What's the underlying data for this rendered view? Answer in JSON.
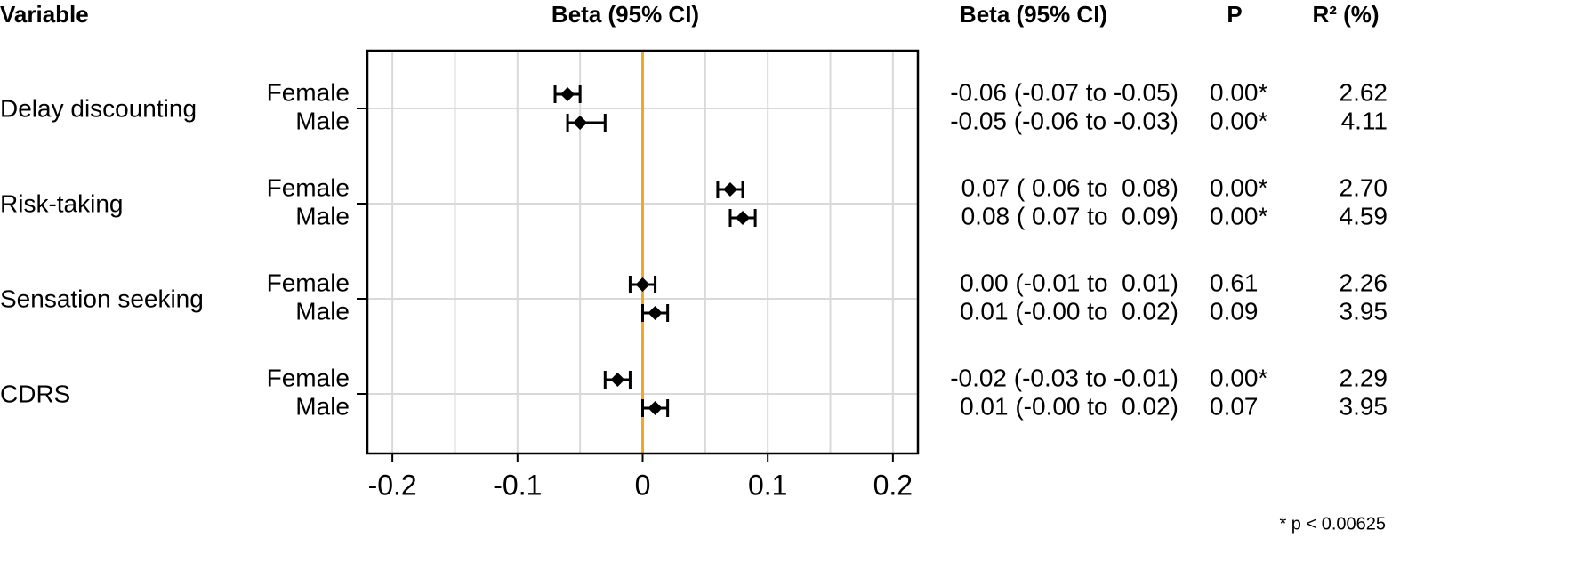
{
  "chart_data": {
    "type": "forest",
    "headers": {
      "variable": "Variable",
      "plot": "Beta (95% CI)",
      "ci": "Beta (95% CI)",
      "p": "P",
      "r2": "R² (%)"
    },
    "categories": [
      "Delay discounting",
      "Risk-taking",
      "Sensation seeking",
      "CDRS"
    ],
    "series": [
      {
        "name": "Female",
        "color": "#000000",
        "values": [
          -0.06,
          0.07,
          0.0,
          -0.02
        ],
        "lower": [
          -0.07,
          0.06,
          -0.01,
          -0.03
        ],
        "upper": [
          -0.05,
          0.08,
          0.01,
          -0.01
        ],
        "value_labels": [
          "-0.06 (-0.07 to -0.05)",
          "0.07 ( 0.06 to  0.08)",
          "0.00 (-0.01 to  0.01)",
          "-0.02 (-0.03 to -0.01)"
        ],
        "p": [
          "0.00*",
          "0.00*",
          "0.61",
          "0.00*"
        ],
        "r2": [
          "2.62",
          "2.70",
          "2.26",
          "2.29"
        ]
      },
      {
        "name": "Male",
        "color": "#000000",
        "values": [
          -0.05,
          0.08,
          0.01,
          0.01
        ],
        "lower": [
          -0.06,
          0.07,
          -0.0,
          -0.0
        ],
        "upper": [
          -0.03,
          0.09,
          0.02,
          0.02
        ],
        "value_labels": [
          "-0.05 (-0.06 to -0.03)",
          "0.08 ( 0.07 to  0.09)",
          "0.01 (-0.00 to  0.02)",
          "0.01 (-0.00 to  0.02)"
        ],
        "p": [
          "0.00*",
          "0.00*",
          "0.09",
          "0.07"
        ],
        "r2": [
          "4.11",
          "4.59",
          "3.95",
          "3.95"
        ]
      }
    ],
    "xlim": [
      -0.22,
      0.22
    ],
    "xticks": [
      -0.2,
      -0.1,
      0,
      0.1,
      0.2
    ],
    "xgrid": [
      -0.2,
      -0.15,
      -0.1,
      -0.05,
      0.05,
      0.1,
      0.15,
      0.2
    ],
    "ref_line": 0,
    "ref_color": "#f5a623",
    "grid": true,
    "footnote": "* p < 0.00625"
  }
}
